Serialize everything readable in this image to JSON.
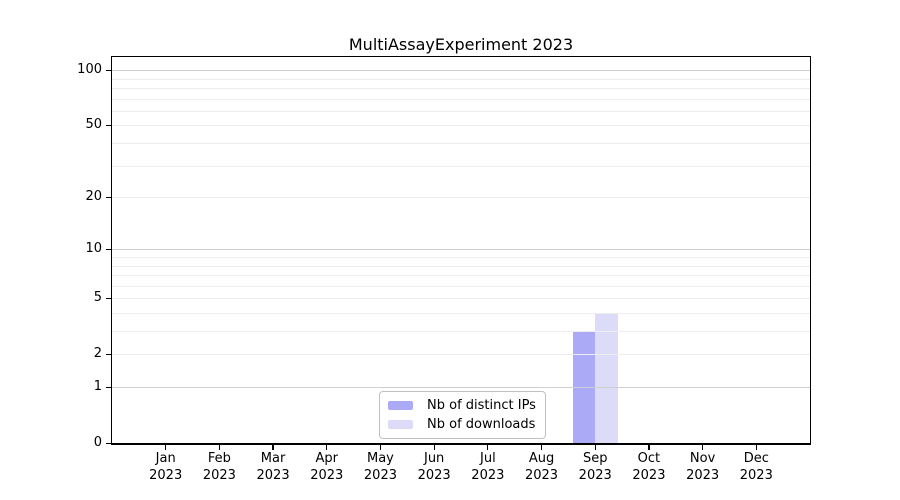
{
  "chart_data": {
    "type": "bar",
    "title": "MultiAssayExperiment 2023",
    "xlabel": "",
    "ylabel": "",
    "y_scale": "log1p",
    "ylim": [
      0,
      118
    ],
    "grid": true,
    "legend_position": "bottom-center",
    "categories": [
      "Jan",
      "Feb",
      "Mar",
      "Apr",
      "May",
      "Jun",
      "Jul",
      "Aug",
      "Sep",
      "Oct",
      "Nov",
      "Dec"
    ],
    "category_sublabel": "2023",
    "series": [
      {
        "name": "Nb of distinct IPs",
        "color": "#aaaaf7",
        "values": [
          0,
          0,
          0,
          0,
          0,
          0,
          0,
          0,
          3,
          0,
          0,
          0
        ]
      },
      {
        "name": "Nb of downloads",
        "color": "#dcdcf9",
        "values": [
          0,
          0,
          0,
          0,
          0,
          0,
          0,
          0,
          4,
          0,
          0,
          0
        ]
      }
    ],
    "y_major_ticks": [
      0,
      1,
      2,
      5,
      10,
      20,
      50,
      100
    ],
    "grid_major_values": [
      1,
      10,
      100
    ],
    "grid_minor_values": [
      2,
      3,
      4,
      5,
      6,
      7,
      8,
      9,
      20,
      30,
      40,
      50,
      60,
      70,
      80,
      90
    ],
    "colors": {
      "grid_major": "#d0d0d0",
      "grid_minor": "#ededed",
      "spine": "#000000",
      "background": "#ffffff",
      "text": "#000000"
    }
  }
}
